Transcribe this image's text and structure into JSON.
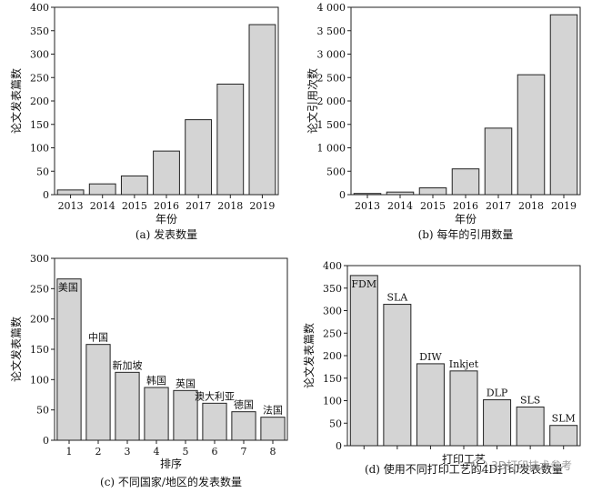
{
  "watermark": "3D打印技术参考",
  "chart_data": [
    {
      "id": "a",
      "type": "bar",
      "caption": "(a) 发表数量",
      "xlabel": "年份",
      "ylabel": "论文发表篇数",
      "categories": [
        "2013",
        "2014",
        "2015",
        "2016",
        "2017",
        "2018",
        "2019"
      ],
      "values": [
        10,
        23,
        40,
        93,
        160,
        236,
        363
      ],
      "ylim": [
        0,
        400
      ],
      "yticks": [
        0,
        50,
        100,
        150,
        200,
        250,
        300,
        350,
        400
      ],
      "ytick_labels": [
        "0",
        "50",
        "100",
        "150",
        "200",
        "250",
        "300",
        "350",
        "400"
      ],
      "bar_labels": [
        "",
        "",
        "",
        "",
        "",
        "",
        ""
      ]
    },
    {
      "id": "b",
      "type": "bar",
      "caption": "(b) 每年的引用数量",
      "xlabel": "年份",
      "ylabel": "论文引用次数",
      "categories": [
        "2013",
        "2014",
        "2015",
        "2016",
        "2017",
        "2018",
        "2019"
      ],
      "values": [
        25,
        55,
        145,
        550,
        1420,
        2560,
        3840
      ],
      "ylim": [
        0,
        4000
      ],
      "yticks": [
        0,
        500,
        1000,
        1500,
        2000,
        2500,
        3000,
        3500,
        4000
      ],
      "ytick_labels": [
        "0",
        "500",
        "1 000",
        "1 500",
        "2 000",
        "2 500",
        "3 000",
        "3 500",
        "4 000"
      ],
      "bar_labels": [
        "",
        "",
        "",
        "",
        "",
        "",
        ""
      ]
    },
    {
      "id": "c",
      "type": "bar",
      "caption": "(c) 不同国家/地区的发表数量",
      "xlabel": "排序",
      "ylabel": "论文发表篇数",
      "categories": [
        "1",
        "2",
        "3",
        "4",
        "5",
        "6",
        "7",
        "8"
      ],
      "values": [
        266,
        158,
        112,
        87,
        82,
        61,
        47,
        38
      ],
      "ylim": [
        0,
        300
      ],
      "yticks": [
        0,
        50,
        100,
        150,
        200,
        250,
        300
      ],
      "ytick_labels": [
        "0",
        "50",
        "100",
        "150",
        "200",
        "250",
        "300"
      ],
      "bar_labels": [
        "美国",
        "中国",
        "新加坡",
        "韩国",
        "英国",
        "澳大利亚",
        "德国",
        "法国"
      ]
    },
    {
      "id": "d",
      "type": "bar",
      "caption": "(d) 使用不同打印工艺的4D打印发表数量",
      "xlabel": "打印工艺",
      "ylabel": "论文发表篇数",
      "categories": [
        "",
        "",
        "",
        "",
        "",
        "",
        ""
      ],
      "values": [
        378,
        314,
        182,
        166,
        102,
        86,
        45
      ],
      "ylim": [
        0,
        400
      ],
      "yticks": [
        0,
        50,
        100,
        150,
        200,
        250,
        300,
        350,
        400
      ],
      "ytick_labels": [
        "0",
        "50",
        "100",
        "150",
        "200",
        "250",
        "300",
        "350",
        "400"
      ],
      "bar_labels": [
        "FDM",
        "SLA",
        "DIW",
        "Inkjet",
        "DLP",
        "SLS",
        "SLM"
      ]
    }
  ]
}
